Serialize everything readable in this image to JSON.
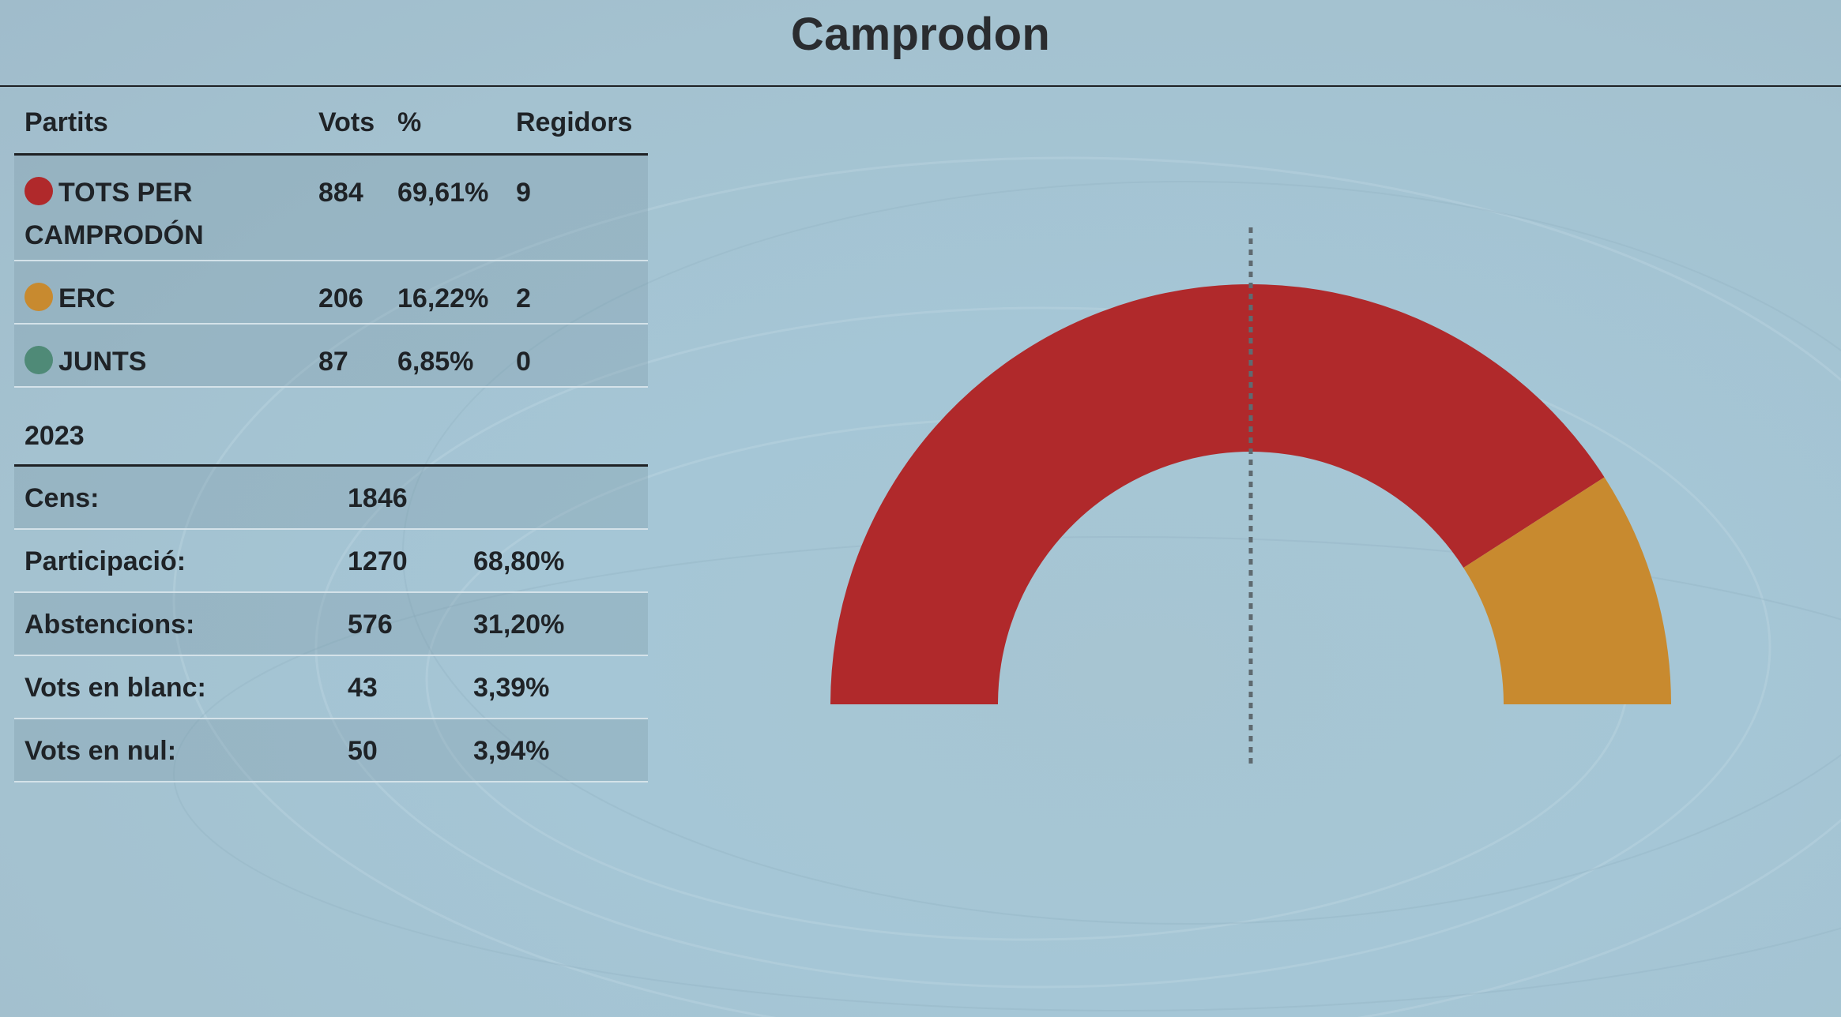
{
  "page": {
    "title": "Camprodon"
  },
  "results_table": {
    "headers": {
      "party": "Partits",
      "votes": "Vots",
      "percent": "%",
      "seats": "Regidors"
    },
    "rows": [
      {
        "party": "TOTS PER CAMPRODÓN",
        "votes": "884",
        "percent": "69,61%",
        "seats": "9",
        "color": "#b0292b"
      },
      {
        "party": "ERC",
        "votes": "206",
        "percent": "16,22%",
        "seats": "2",
        "color": "#c88a2f"
      },
      {
        "party": "JUNTS",
        "votes": "87",
        "percent": "6,85%",
        "seats": "0",
        "color": "#4f8a77"
      }
    ]
  },
  "summary": {
    "year": "2023",
    "rows": [
      {
        "label": "Cens:",
        "count": "1846",
        "percent": ""
      },
      {
        "label": "Participació:",
        "count": "1270",
        "percent": "68,80%"
      },
      {
        "label": "Abstencions:",
        "count": "576",
        "percent": "31,20%"
      },
      {
        "label": "Vots en blanc:",
        "count": "43",
        "percent": "3,39%"
      },
      {
        "label": "Vots en nul:",
        "count": "50",
        "percent": "3,94%"
      }
    ]
  },
  "chart_data": {
    "type": "pie",
    "variant": "semicircle-parliament",
    "categories": [
      "TOTS PER CAMPRODÓN",
      "ERC",
      "JUNTS"
    ],
    "values": [
      9,
      2,
      0
    ],
    "colors": [
      "#b0292b",
      "#c88a2f",
      "#4f8a77"
    ],
    "total_seats": 11,
    "majority_line": "dashed vertical at center"
  }
}
